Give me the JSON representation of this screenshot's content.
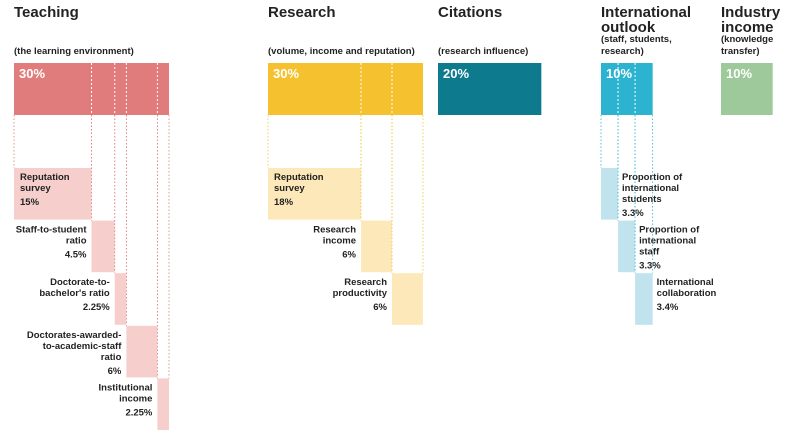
{
  "pillars": [
    {
      "title": [
        "Teaching"
      ],
      "subtitle": [
        "(the learning environment)"
      ],
      "value": 30,
      "value_label": "30%",
      "color": "#e07c7b",
      "light": "#f6cfcd",
      "items": [
        {
          "label": [
            "Reputation",
            "survey"
          ],
          "value": 15,
          "value_label": "15%"
        },
        {
          "label": [
            "Staff-to-student",
            "ratio"
          ],
          "value": 4.5,
          "value_label": "4.5%"
        },
        {
          "label": [
            "Doctorate-to-",
            "bachelor's ratio"
          ],
          "value": 2.25,
          "value_label": "2.25%"
        },
        {
          "label": [
            "Doctorates-awarded-",
            "to-academic-staff",
            "ratio"
          ],
          "value": 6,
          "value_label": "6%"
        },
        {
          "label": [
            "Institutional",
            "income"
          ],
          "value": 2.25,
          "value_label": "2.25%"
        }
      ]
    },
    {
      "title": [
        "Research"
      ],
      "subtitle": [
        "(volume, income and reputation)"
      ],
      "value": 30,
      "value_label": "30%",
      "color": "#f6c12f",
      "light": "#fce8b9",
      "items": [
        {
          "label": [
            "Reputation",
            "survey"
          ],
          "value": 18,
          "value_label": "18%"
        },
        {
          "label": [
            "Research",
            "income"
          ],
          "value": 6,
          "value_label": "6%"
        },
        {
          "label": [
            "Research",
            "productivity"
          ],
          "value": 6,
          "value_label": "6%"
        }
      ]
    },
    {
      "title": [
        "Citations"
      ],
      "subtitle": [
        "(research influence)"
      ],
      "value": 20,
      "value_label": "20%",
      "color": "#0e7a8e",
      "light": "#bfe3ee",
      "items": []
    },
    {
      "title": [
        "International",
        "outlook"
      ],
      "subtitle": [
        "(staff, students,",
        "research)"
      ],
      "value": 10,
      "value_label": "10%",
      "color": "#2cb3cf",
      "light": "#c0e3ee",
      "items": [
        {
          "label": [
            "Proportion of",
            "international",
            "students"
          ],
          "value": 3.3,
          "value_label": "3.3%"
        },
        {
          "label": [
            "Proportion of",
            "international",
            "staff"
          ],
          "value": 3.3,
          "value_label": "3.3%"
        },
        {
          "label": [
            "International",
            "collaboration"
          ],
          "value": 3.4,
          "value_label": "3.4%"
        }
      ]
    },
    {
      "title": [
        "Industry",
        "income"
      ],
      "subtitle": [
        "(knowledge",
        "transfer)"
      ],
      "value": 10,
      "value_label": "10%",
      "color": "#9ec99b",
      "light": "#d9ecd7",
      "items": []
    }
  ]
}
